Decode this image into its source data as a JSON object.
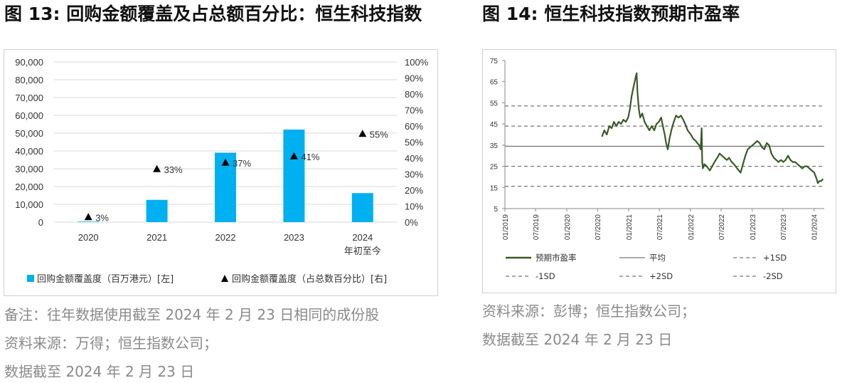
{
  "left": {
    "title": "图 13: 回购金额覆盖及占总额百分比：恒生科技指数",
    "notes": [
      "备注：往年数据使用截至 2024 年 2 月 23 日相同的成份股",
      "资料来源：万得；恒生指数公司；",
      "数据截至  2024 年 2 月 23 日"
    ]
  },
  "right": {
    "title": "图 14: 恒生科技指数预期市盈率",
    "notes": [
      "资料来源：彭博；恒生指数公司；",
      "数据截至  2024 年 2 月 23 日"
    ]
  },
  "colors": {
    "bar": "#00b0f0",
    "line": "#3a5a26",
    "ref": "#555555",
    "grid": "#d9d9d9"
  },
  "chart_data": [
    {
      "type": "bar",
      "categories": [
        "2020",
        "2021",
        "2022",
        "2023",
        "2024\n年初至今"
      ],
      "series": [
        {
          "name": "回购金额覆盖度（百万港元）[左]",
          "type": "bar",
          "axis": "left",
          "values": [
            300,
            12500,
            39000,
            52000,
            16300
          ]
        },
        {
          "name": "回购金额覆盖度（占总数百分比）[右]",
          "type": "scatter",
          "marker": "triangle",
          "axis": "right",
          "values": [
            3,
            33,
            37,
            41,
            55
          ],
          "labels": [
            "3%",
            "33%",
            "37%",
            "41%",
            "55%"
          ]
        }
      ],
      "ylim": [
        0,
        90000
      ],
      "y_ticks": [
        "0",
        "10,000",
        "20,000",
        "30,000",
        "40,000",
        "50,000",
        "60,000",
        "70,000",
        "80,000",
        "90,000"
      ],
      "y2lim": [
        0,
        100
      ],
      "y2_ticks": [
        "0%",
        "10%",
        "20%",
        "30%",
        "40%",
        "50%",
        "60%",
        "70%",
        "80%",
        "90%",
        "100%"
      ],
      "grid": true,
      "legend": "bottom"
    },
    {
      "type": "line",
      "x_ticks": [
        "01/2019",
        "07/2019",
        "01/2020",
        "07/2020",
        "01/2021",
        "07/2021",
        "01/2022",
        "07/2022",
        "01/2023",
        "07/2023",
        "01/2024"
      ],
      "ylim": [
        5,
        75
      ],
      "y_ticks": [
        "5",
        "15",
        "25",
        "35",
        "45",
        "55",
        "65",
        "75"
      ],
      "series": [
        {
          "name": "预期市盈率",
          "style": "solid-thick",
          "points": [
            [
              "2020-07-27",
              39
            ],
            [
              "2020-08-10",
              42
            ],
            [
              "2020-08-25",
              40
            ],
            [
              "2020-09-08",
              44
            ],
            [
              "2020-09-22",
              43
            ],
            [
              "2020-10-06",
              46
            ],
            [
              "2020-10-20",
              44
            ],
            [
              "2020-11-03",
              46
            ],
            [
              "2020-11-17",
              45
            ],
            [
              "2020-12-01",
              47
            ],
            [
              "2020-12-15",
              46
            ],
            [
              "2020-12-29",
              48
            ],
            [
              "2021-01-08",
              52
            ],
            [
              "2021-01-18",
              58
            ],
            [
              "2021-01-28",
              62
            ],
            [
              "2021-02-08",
              66
            ],
            [
              "2021-02-17",
              69
            ],
            [
              "2021-02-22",
              60
            ],
            [
              "2021-03-02",
              52
            ],
            [
              "2021-03-10",
              48
            ],
            [
              "2021-03-22",
              50
            ],
            [
              "2021-04-05",
              46
            ],
            [
              "2021-04-19",
              44
            ],
            [
              "2021-05-03",
              42
            ],
            [
              "2021-05-17",
              44
            ],
            [
              "2021-06-01",
              42
            ],
            [
              "2021-06-14",
              45
            ],
            [
              "2021-06-28",
              46
            ],
            [
              "2021-07-12",
              48
            ],
            [
              "2021-07-22",
              44
            ],
            [
              "2021-08-02",
              40
            ],
            [
              "2021-08-10",
              36
            ],
            [
              "2021-08-20",
              33
            ],
            [
              "2021-08-30",
              38
            ],
            [
              "2021-09-10",
              42
            ],
            [
              "2021-09-24",
              46
            ],
            [
              "2021-10-08",
              49
            ],
            [
              "2021-10-22",
              48
            ],
            [
              "2021-11-05",
              49
            ],
            [
              "2021-11-19",
              47
            ],
            [
              "2021-12-01",
              45
            ],
            [
              "2021-12-15",
              42
            ],
            [
              "2022-01-03",
              40
            ],
            [
              "2022-01-17",
              38
            ],
            [
              "2022-02-01",
              37
            ],
            [
              "2022-02-10",
              36
            ],
            [
              "2022-02-21",
              35
            ],
            [
              "2022-03-02",
              33
            ],
            [
              "2022-03-08",
              43
            ],
            [
              "2022-03-11",
              27
            ],
            [
              "2022-03-15",
              24
            ],
            [
              "2022-03-24",
              26
            ],
            [
              "2022-04-07",
              25
            ],
            [
              "2022-04-25",
              23
            ],
            [
              "2022-05-09",
              25
            ],
            [
              "2022-05-23",
              27
            ],
            [
              "2022-06-08",
              29
            ],
            [
              "2022-06-22",
              31
            ],
            [
              "2022-07-06",
              30
            ],
            [
              "2022-07-20",
              29
            ],
            [
              "2022-08-03",
              28
            ],
            [
              "2022-08-17",
              29
            ],
            [
              "2022-09-01",
              27
            ],
            [
              "2022-09-15",
              26
            ],
            [
              "2022-10-03",
              24
            ],
            [
              "2022-10-24",
              22
            ],
            [
              "2022-11-07",
              26
            ],
            [
              "2022-11-21",
              30
            ],
            [
              "2022-12-05",
              33
            ],
            [
              "2022-12-19",
              34
            ],
            [
              "2023-01-03",
              35
            ],
            [
              "2023-01-17",
              36
            ],
            [
              "2023-01-30",
              37
            ],
            [
              "2023-02-13",
              36
            ],
            [
              "2023-02-27",
              34
            ],
            [
              "2023-03-13",
              33
            ],
            [
              "2023-03-27",
              36
            ],
            [
              "2023-04-10",
              35
            ],
            [
              "2023-04-24",
              31
            ],
            [
              "2023-05-08",
              29
            ],
            [
              "2023-05-22",
              28
            ],
            [
              "2023-06-05",
              27
            ],
            [
              "2023-06-19",
              28
            ],
            [
              "2023-07-03",
              27
            ],
            [
              "2023-07-17",
              28
            ],
            [
              "2023-07-31",
              30
            ],
            [
              "2023-08-14",
              28
            ],
            [
              "2023-08-28",
              27
            ],
            [
              "2023-09-11",
              27
            ],
            [
              "2023-09-25",
              26
            ],
            [
              "2023-10-09",
              25
            ],
            [
              "2023-10-23",
              24
            ],
            [
              "2023-11-06",
              25
            ],
            [
              "2023-11-20",
              25
            ],
            [
              "2023-12-04",
              24
            ],
            [
              "2023-12-18",
              23
            ],
            [
              "2024-01-02",
              22
            ],
            [
              "2024-01-16",
              19
            ],
            [
              "2024-01-23",
              17
            ],
            [
              "2024-02-01",
              18
            ],
            [
              "2024-02-12",
              18
            ],
            [
              "2024-02-23",
              19
            ]
          ]
        },
        {
          "name": "平均",
          "style": "solid",
          "value": 34.5
        },
        {
          "name": "+1SD",
          "style": "dash",
          "value": 44
        },
        {
          "name": "-1SD",
          "style": "dash",
          "value": 25
        },
        {
          "name": "+2SD",
          "style": "dash",
          "value": 53.5
        },
        {
          "name": "-2SD",
          "style": "dash",
          "value": 15.5
        }
      ],
      "grid": false,
      "legend": "bottom"
    }
  ]
}
